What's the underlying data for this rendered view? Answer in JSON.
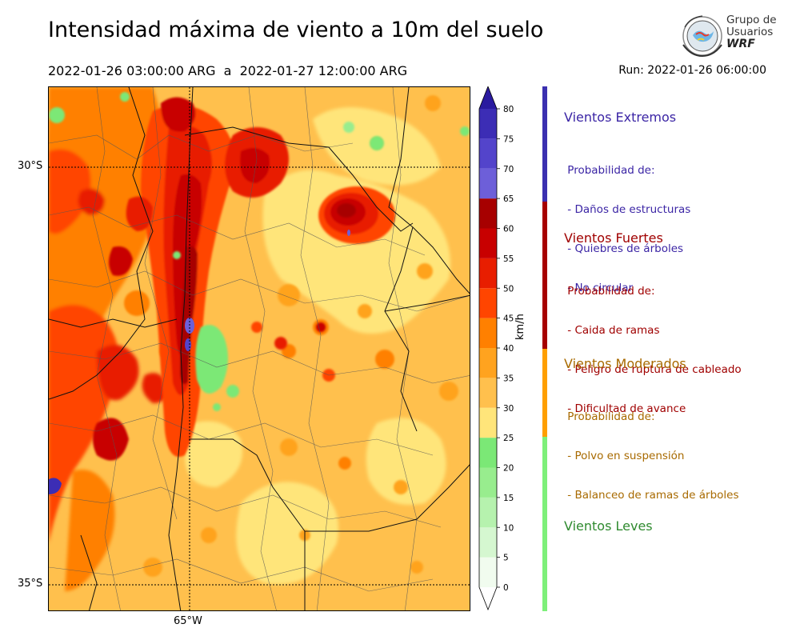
{
  "header": {
    "title": "Intensidad máxima de viento a 10m del suelo",
    "period": "2022-01-26 03:00:00 ARG  a  2022-01-27 12:00:00 ARG",
    "run": "Run: 2022-01-26 06:00:00"
  },
  "logo": {
    "line1": "Grupo de",
    "line2": "Usuarios",
    "line3": "WRF"
  },
  "map": {
    "lat_labels": [
      "30°S",
      "35°S"
    ],
    "lon_labels": [
      "65°W"
    ],
    "region": "Argentina central-norte"
  },
  "colorbar": {
    "unit": "km/h",
    "ticks": [
      "80",
      "75",
      "70",
      "65",
      "60",
      "55",
      "50",
      "45",
      "40",
      "35",
      "30",
      "25",
      "20",
      "15",
      "10",
      "5",
      "0"
    ],
    "levels": [
      0,
      5,
      10,
      15,
      20,
      25,
      30,
      35,
      40,
      45,
      50,
      55,
      60,
      65,
      70,
      75,
      80
    ],
    "colors": [
      "#f1fcef",
      "#d5f7d0",
      "#b6f2ae",
      "#98ed8e",
      "#7be876",
      "#ffe57a",
      "#ffc04d",
      "#ffa31f",
      "#ff8000",
      "#ff4500",
      "#e81e00",
      "#c80000",
      "#a70000",
      "#6d5fd9",
      "#5344cb",
      "#3c2db5",
      "#2a1a9f"
    ]
  },
  "categories": [
    {
      "title": "Vientos Extremos",
      "color": "#3b25a5",
      "desc": [
        " Probabilidad de:",
        " - Daños de estructuras",
        " - Quiebres de árboles",
        " - No circular"
      ]
    },
    {
      "title": "Vientos Fuertes",
      "color": "#a00000",
      "desc": [
        " Probabilidad de:",
        " - Caida de ramas",
        " - Peligro de ruptura de cableado",
        " - Dificultad de avance"
      ]
    },
    {
      "title": "Vientos Moderados",
      "color": "#a86a00",
      "desc": [
        " Probabilidad de:",
        " - Polvo en suspensión",
        " - Balanceo de ramas de árboles"
      ]
    },
    {
      "title": "Vientos Leves",
      "color": "#2f8a2f",
      "desc": []
    }
  ],
  "category_bar_colors": [
    "#3b30b0",
    "#a60000",
    "#ff9f00",
    "#7ef07a"
  ]
}
